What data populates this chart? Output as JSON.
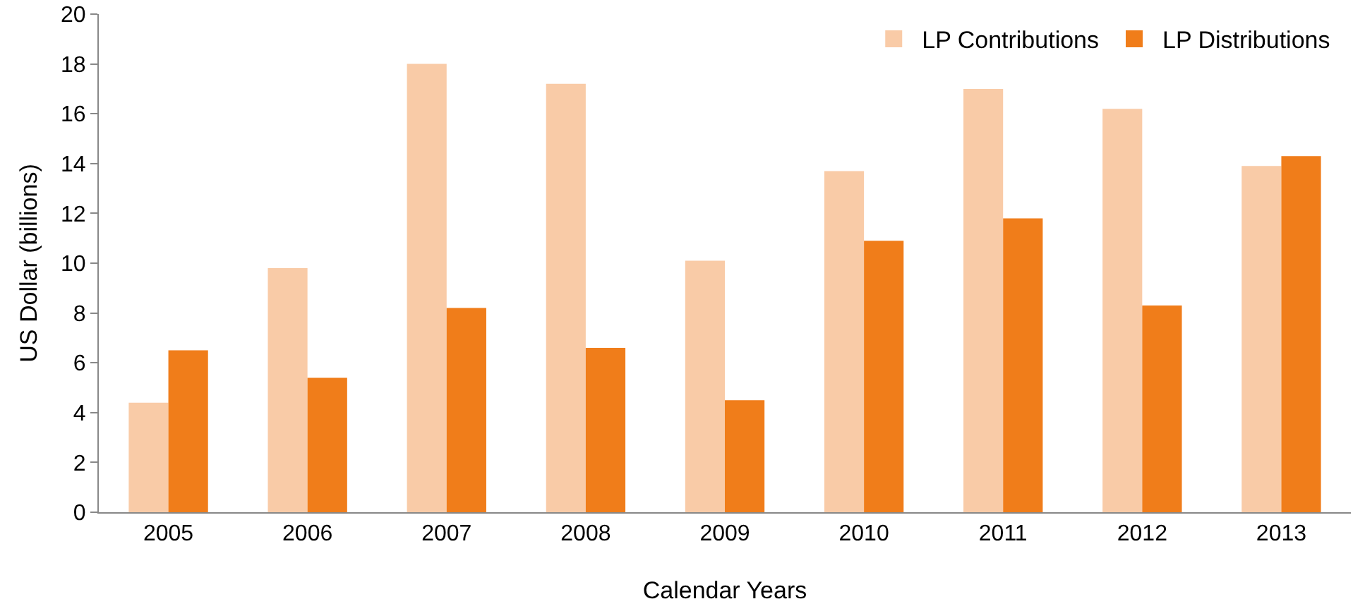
{
  "chart_data": {
    "type": "bar",
    "xlabel": "Calendar Years",
    "ylabel": "US Dollar (billions)",
    "categories": [
      "2005",
      "2006",
      "2007",
      "2008",
      "2009",
      "2010",
      "2011",
      "2012",
      "2013"
    ],
    "series": [
      {
        "name": "LP Contributions",
        "color": "#f9cba7",
        "values": [
          4.4,
          9.8,
          18.0,
          17.2,
          10.1,
          13.7,
          17.0,
          16.2,
          13.9
        ]
      },
      {
        "name": "LP Distributions",
        "color": "#f07d1a",
        "values": [
          6.5,
          5.4,
          8.2,
          6.6,
          4.5,
          10.9,
          11.8,
          8.3,
          14.3
        ]
      }
    ],
    "ylim": [
      0,
      20
    ],
    "yticks": [
      0,
      2,
      4,
      6,
      8,
      10,
      12,
      14,
      16,
      18,
      20
    ],
    "grid": false,
    "legend": "top right"
  }
}
